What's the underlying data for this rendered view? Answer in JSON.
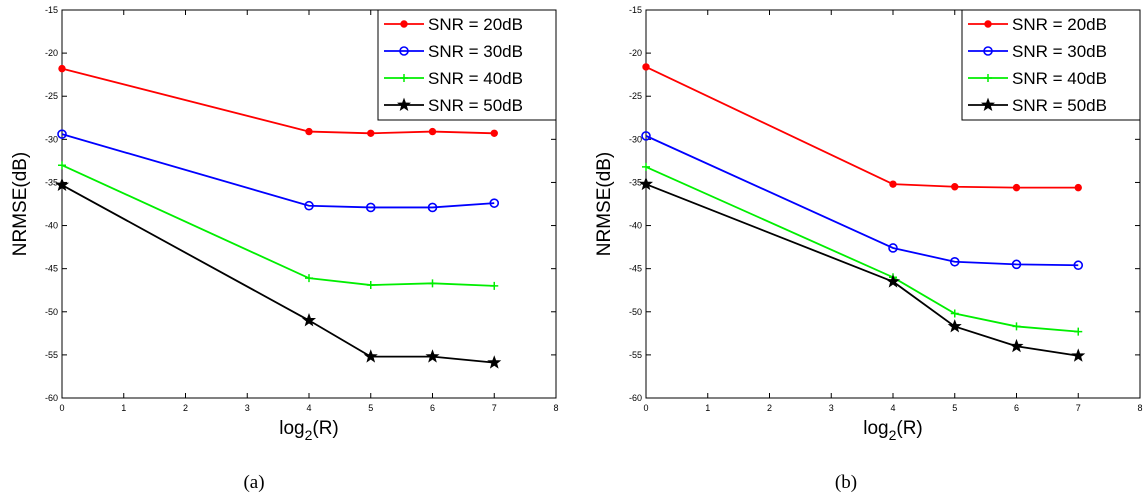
{
  "chart_data": [
    {
      "type": "line",
      "caption": "(a)",
      "xlabel_main": "log",
      "xlabel_sub": "2",
      "xlabel_tail": "(R)",
      "ylabel": "NRMSE(dB)",
      "xlim": [
        0,
        8
      ],
      "ylim": [
        -60,
        -15
      ],
      "xticks": [
        0,
        1,
        2,
        3,
        4,
        5,
        6,
        7,
        8
      ],
      "yticks": [
        -60,
        -55,
        -50,
        -45,
        -40,
        -35,
        -30,
        -25,
        -20,
        -15
      ],
      "legend_position": "top-right",
      "x": [
        0,
        4,
        5,
        6,
        7
      ],
      "series": [
        {
          "name": "SNR = 20dB",
          "color": "#ff0000",
          "marker": "dot",
          "values": [
            -21.8,
            -29.1,
            -29.3,
            -29.1,
            -29.3
          ]
        },
        {
          "name": "SNR = 30dB",
          "color": "#0000ff",
          "marker": "circle",
          "values": [
            -29.4,
            -37.7,
            -37.9,
            -37.9,
            -37.4
          ]
        },
        {
          "name": "SNR = 40dB",
          "color": "#00ee00",
          "marker": "plus",
          "values": [
            -33.0,
            -46.1,
            -46.9,
            -46.7,
            -47.0
          ]
        },
        {
          "name": "SNR = 50dB",
          "color": "#000000",
          "marker": "star",
          "values": [
            -35.3,
            -51.0,
            -55.2,
            -55.2,
            -55.9
          ]
        }
      ]
    },
    {
      "type": "line",
      "caption": "(b)",
      "xlabel_main": "log",
      "xlabel_sub": "2",
      "xlabel_tail": "(R)",
      "ylabel": "NRMSE(dB)",
      "xlim": [
        0,
        8
      ],
      "ylim": [
        -60,
        -15
      ],
      "xticks": [
        0,
        1,
        2,
        3,
        4,
        5,
        6,
        7,
        8
      ],
      "yticks": [
        -60,
        -55,
        -50,
        -45,
        -40,
        -35,
        -30,
        -25,
        -20,
        -15
      ],
      "legend_position": "top-right",
      "x": [
        0,
        4,
        5,
        6,
        7
      ],
      "series": [
        {
          "name": "SNR = 20dB",
          "color": "#ff0000",
          "marker": "dot",
          "values": [
            -21.6,
            -35.2,
            -35.5,
            -35.6,
            -35.6
          ]
        },
        {
          "name": "SNR = 30dB",
          "color": "#0000ff",
          "marker": "circle",
          "values": [
            -29.6,
            -42.6,
            -44.2,
            -44.5,
            -44.6
          ]
        },
        {
          "name": "SNR = 40dB",
          "color": "#00ee00",
          "marker": "plus",
          "values": [
            -33.2,
            -46.0,
            -50.2,
            -51.7,
            -52.3
          ]
        },
        {
          "name": "SNR = 50dB",
          "color": "#000000",
          "marker": "star",
          "values": [
            -35.2,
            -46.5,
            -51.7,
            -54.0,
            -55.1
          ]
        }
      ]
    }
  ]
}
